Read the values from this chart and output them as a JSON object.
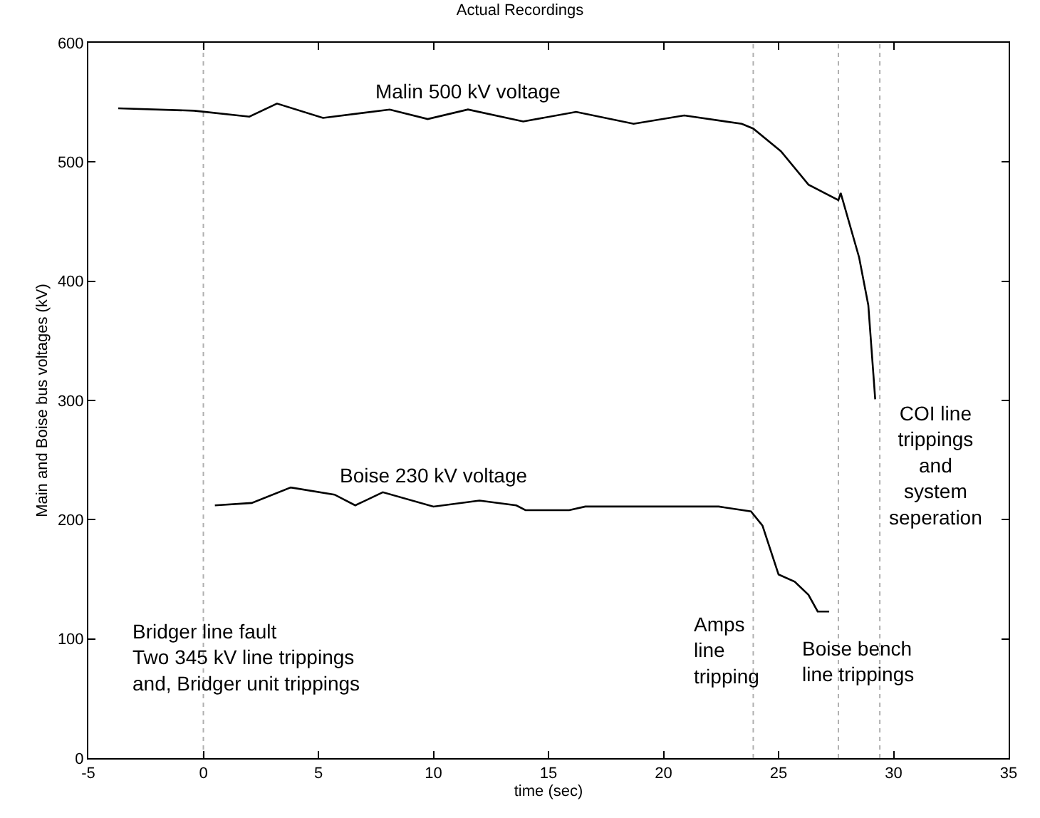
{
  "chart_data": {
    "type": "line",
    "title": "Actual Recordings",
    "xlabel": "time (sec)",
    "ylabel": "Main and Boise bus voltages (kV)",
    "series": [
      {
        "name": "Malin 500 kV voltage",
        "color": "#000000",
        "x": [
          -3.7,
          -0.4,
          2.0,
          3.2,
          5.2,
          8.1,
          9.75,
          11.5,
          13.9,
          16.2,
          18.7,
          20.9,
          23.4,
          23.9,
          25.1,
          26.3,
          27.6,
          27.7,
          28.5,
          28.9,
          29.2
        ],
        "values": [
          545,
          543,
          538,
          549,
          537,
          544,
          536,
          544,
          534,
          542,
          532,
          539,
          532,
          528,
          509,
          481,
          468,
          474,
          420,
          380,
          301
        ]
      },
      {
        "name": "Boise 230 kV voltage",
        "color": "#000000",
        "x": [
          0.5,
          2.1,
          3.8,
          5.7,
          6.6,
          7.8,
          10.0,
          12.0,
          13.6,
          14.0,
          15.9,
          16.6,
          22.4,
          23.8,
          24.3,
          25.0,
          25.7,
          26.3,
          26.7,
          27.2
        ],
        "values": [
          212,
          214,
          227,
          221,
          212,
          223,
          211,
          216,
          212,
          208,
          208,
          211,
          211,
          207,
          195,
          154,
          148,
          137,
          123,
          123
        ]
      }
    ],
    "xlim": [
      -5,
      35
    ],
    "xticks": [
      -5,
      0,
      5,
      10,
      15,
      20,
      25,
      30,
      35
    ],
    "ylim": [
      0,
      600
    ],
    "yticks": [
      0,
      100,
      200,
      300,
      400,
      500,
      600
    ],
    "grid": false,
    "legend": false,
    "marker": "none",
    "line_style": "solid",
    "ref_lines": [
      {
        "axis": "x",
        "value": 0,
        "color": "#b0b0b0",
        "line_style": "dotted"
      },
      {
        "axis": "x",
        "value": 23.9,
        "color": "#b0b0b0",
        "line_style": "dotted"
      },
      {
        "axis": "x",
        "value": 27.6,
        "color": "#b0b0b0",
        "line_style": "dotted"
      },
      {
        "axis": "x",
        "value": 29.4,
        "color": "#b0b0b0",
        "line_style": "dotted"
      }
    ],
    "annotations": [
      "Bridger line fault\nTwo 345 kV line trippings\nand, Bridger unit trippings",
      "Amps\nline\ntripping",
      "Boise bench\nline trippings",
      "COI line\ntrippings\nand\nsystem\nseperation"
    ]
  }
}
